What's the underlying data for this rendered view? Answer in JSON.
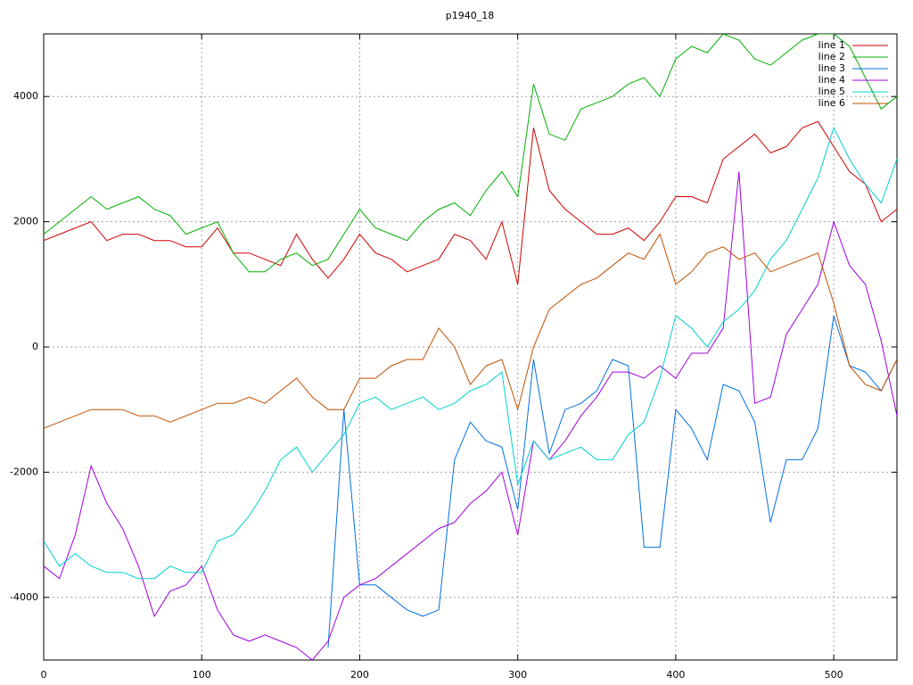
{
  "chart_data": {
    "type": "line",
    "title": "p1940_18",
    "x": [
      0,
      10,
      20,
      30,
      40,
      50,
      60,
      70,
      80,
      90,
      100,
      110,
      120,
      130,
      140,
      150,
      160,
      170,
      180,
      190,
      200,
      210,
      220,
      230,
      240,
      250,
      260,
      270,
      280,
      290,
      300,
      310,
      320,
      330,
      340,
      350,
      360,
      370,
      380,
      390,
      400,
      410,
      420,
      430,
      440,
      450,
      460,
      470,
      480,
      490,
      500,
      510,
      520,
      530,
      540
    ],
    "series": [
      {
        "name": "line 1",
        "color": "#d00000",
        "values": [
          1700,
          1800,
          1900,
          2000,
          1700,
          1800,
          1800,
          1700,
          1700,
          1600,
          1600,
          1900,
          1500,
          1500,
          1400,
          1300,
          1800,
          1400,
          1100,
          1400,
          1800,
          1500,
          1400,
          1200,
          1300,
          1400,
          1800,
          1700,
          1400,
          2000,
          1000,
          3500,
          2500,
          2200,
          2000,
          1800,
          1800,
          1900,
          1700,
          2000,
          2400,
          2400,
          2300,
          3000,
          3200,
          3400,
          3100,
          3200,
          3500,
          3600,
          3200,
          2800,
          2600,
          2000,
          2200
        ]
      },
      {
        "name": "line 2",
        "color": "#00b000",
        "values": [
          1800,
          2000,
          2200,
          2400,
          2200,
          2300,
          2400,
          2200,
          2100,
          1800,
          1900,
          2000,
          1500,
          1200,
          1200,
          1400,
          1500,
          1300,
          1400,
          1800,
          2200,
          1900,
          1800,
          1700,
          2000,
          2200,
          2300,
          2100,
          2500,
          2800,
          2400,
          4200,
          3400,
          3300,
          3800,
          3900,
          4000,
          4200,
          4300,
          4000,
          4600,
          4800,
          4700,
          5000,
          4900,
          4600,
          4500,
          4700,
          4900,
          5000,
          5000,
          4800,
          4300,
          3800,
          4000
        ]
      },
      {
        "name": "line 3",
        "color": "#0070e0",
        "values": [
          null,
          null,
          null,
          null,
          null,
          null,
          null,
          null,
          null,
          null,
          null,
          null,
          null,
          null,
          null,
          null,
          null,
          null,
          -4800,
          -1000,
          -3800,
          -3800,
          -4000,
          -4200,
          -4300,
          -4200,
          -1800,
          -1200,
          -1500,
          -1600,
          -2600,
          -200,
          -1700,
          -1000,
          -900,
          -700,
          -200,
          -300,
          -3200,
          -3200,
          -1000,
          -1300,
          -1800,
          -600,
          -700,
          -1200,
          -2800,
          -1800,
          -1800,
          -1300,
          500,
          -300,
          -400,
          -700,
          -200
        ]
      },
      {
        "name": "line 4",
        "color": "#a000e0",
        "values": [
          -3500,
          -3700,
          -3000,
          -1900,
          -2500,
          -2900,
          -3500,
          -4300,
          -3900,
          -3800,
          -3500,
          -4200,
          -4600,
          -4700,
          -4600,
          -4700,
          -4800,
          -5000,
          -4700,
          -4000,
          -3800,
          -3700,
          -3500,
          -3300,
          -3100,
          -2900,
          -2800,
          -2500,
          -2300,
          -2000,
          -3000,
          -1500,
          -1800,
          -1500,
          -1100,
          -800,
          -400,
          -400,
          -500,
          -300,
          -500,
          -100,
          -100,
          300,
          2800,
          -900,
          -800,
          200,
          600,
          1000,
          2000,
          1300,
          1000,
          100,
          -1100
        ]
      },
      {
        "name": "line 5",
        "color": "#00d0d0",
        "values": [
          -3100,
          -3500,
          -3300,
          -3500,
          -3600,
          -3600,
          -3700,
          -3700,
          -3500,
          -3600,
          -3600,
          -3100,
          -3000,
          -2700,
          -2300,
          -1800,
          -1600,
          -2000,
          -1700,
          -1400,
          -900,
          -800,
          -1000,
          -900,
          -800,
          -1000,
          -900,
          -700,
          -600,
          -400,
          -2200,
          -1500,
          -1800,
          -1700,
          -1600,
          -1800,
          -1800,
          -1400,
          -1200,
          -500,
          500,
          300,
          0,
          400,
          600,
          900,
          1400,
          1700,
          2200,
          2700,
          3500,
          3000,
          2600,
          2300,
          3000
        ]
      },
      {
        "name": "line 6",
        "color": "#c05000",
        "values": [
          -1300,
          -1200,
          -1100,
          -1000,
          -1000,
          -1000,
          -1100,
          -1100,
          -1200,
          -1100,
          -1000,
          -900,
          -900,
          -800,
          -900,
          -700,
          -500,
          -800,
          -1000,
          -1000,
          -500,
          -500,
          -300,
          -200,
          -200,
          300,
          0,
          -600,
          -300,
          -200,
          -1000,
          0,
          600,
          800,
          1000,
          1100,
          1300,
          1500,
          1400,
          1800,
          1000,
          1200,
          1500,
          1600,
          1400,
          1500,
          1200,
          1300,
          1400,
          1500,
          700,
          -300,
          -600,
          -700,
          -200
        ]
      }
    ],
    "xlim": [
      0,
      540
    ],
    "xticks": [
      0,
      100,
      200,
      300,
      400,
      500
    ],
    "ylim": [
      -5000,
      5000
    ],
    "yticks": [
      -4000,
      -2000,
      0,
      2000,
      4000
    ],
    "grid": true,
    "legend": "upper right"
  }
}
